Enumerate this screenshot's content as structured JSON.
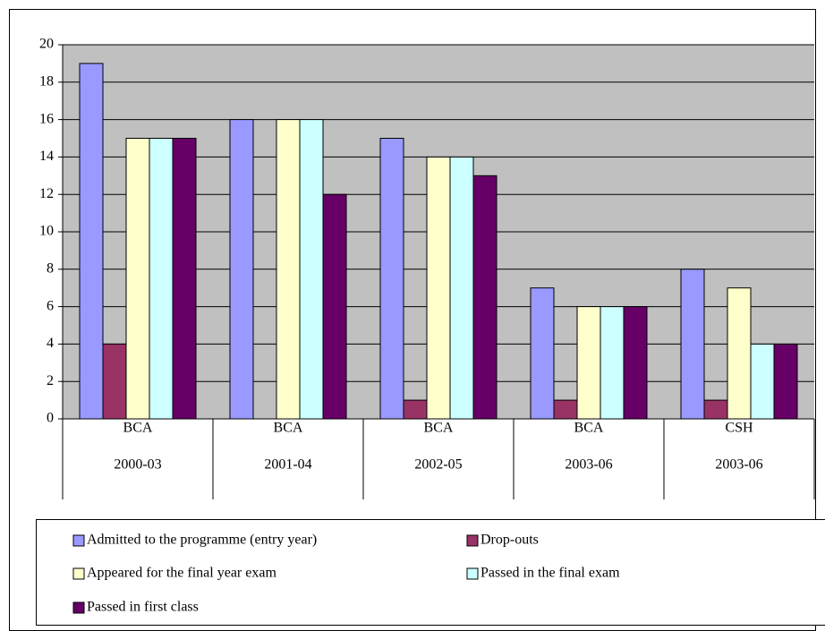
{
  "chart_data": {
    "type": "bar",
    "categories": [
      "2000-03",
      "2001-04",
      "2002-05",
      "2003-06",
      "2003-06"
    ],
    "programs": [
      "BCA",
      "BCA",
      "BCA",
      "BCA",
      "CSH"
    ],
    "series": [
      {
        "name": "Admitted to the programme (entry year)",
        "color": "#9999ff",
        "values": [
          19,
          16,
          15,
          7,
          8
        ]
      },
      {
        "name": "Drop-outs",
        "color": "#993366",
        "values": [
          4,
          0,
          1,
          1,
          1
        ]
      },
      {
        "name": "Appeared for the final year exam",
        "color": "#ffffcc",
        "values": [
          15,
          16,
          14,
          6,
          7
        ]
      },
      {
        "name": "Passed in the final exam",
        "color": "#ccffff",
        "values": [
          15,
          16,
          14,
          6,
          4
        ]
      },
      {
        "name": "Passed in first class",
        "color": "#660066",
        "values": [
          15,
          12,
          13,
          6,
          4
        ]
      }
    ],
    "ylim": [
      0,
      20
    ],
    "yticks": [
      0,
      2,
      4,
      6,
      8,
      10,
      12,
      14,
      16,
      18,
      20
    ],
    "grid": true
  }
}
